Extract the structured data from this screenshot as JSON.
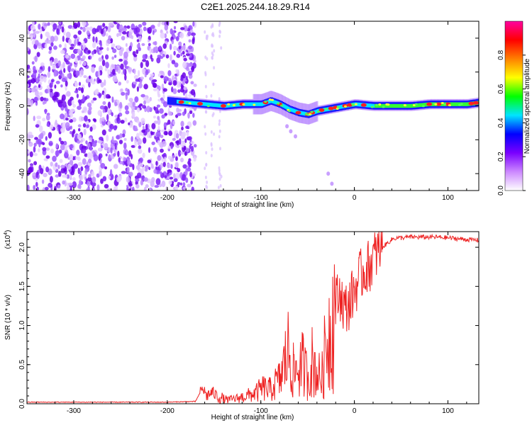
{
  "figure": {
    "title": "C2E1.2025.244.18.29.R14"
  },
  "chart_data": [
    {
      "type": "heatmap",
      "title": "",
      "xlabel": "Height of straight line (km)",
      "ylabel": "Frequency (Hz)",
      "xlim": [
        -350,
        133
      ],
      "ylim": [
        -50,
        50
      ],
      "x_ticks": [
        "-300",
        "-200",
        "-100",
        "0",
        "100"
      ],
      "x_tick_values": [
        -300,
        -200,
        -100,
        0,
        100
      ],
      "y_ticks": [
        "-40",
        "-20",
        "0",
        "20",
        "40"
      ],
      "y_tick_values": [
        -40,
        -20,
        0,
        20,
        40
      ],
      "noise_region_x": [
        -350,
        -180
      ],
      "signal_track": {
        "x": [
          -200,
          -180,
          -160,
          -140,
          -120,
          -100,
          -90,
          -80,
          -70,
          -60,
          -50,
          -40,
          -30,
          -20,
          -10,
          0,
          20,
          40,
          60,
          80,
          100,
          120,
          133
        ],
        "freq": [
          3,
          2,
          1,
          0,
          1,
          1,
          3,
          1,
          -2,
          -4,
          -5,
          -3,
          -2,
          -1,
          0,
          1,
          0,
          0,
          0,
          1,
          1,
          1,
          2
        ]
      },
      "colorbar": {
        "label": "Normalized spectral amplitude",
        "range": [
          0,
          1
        ],
        "ticks": [
          "0.0",
          "0.2",
          "0.4",
          "0.6",
          "0.8"
        ],
        "tick_values": [
          0.0,
          0.2,
          0.4,
          0.6,
          0.8
        ],
        "colors": [
          "#ffffff",
          "#cc88ff",
          "#7a00ff",
          "#0000ff",
          "#00e5ff",
          "#00ff00",
          "#ffff00",
          "#ff8000",
          "#ff0000",
          "#ff00a0"
        ]
      }
    },
    {
      "type": "line",
      "title": "",
      "xlabel": "Height of straight line (km)",
      "ylabel": "SNR (10 * v/v)",
      "y_scale_label": "(x10",
      "y_scale_exponent": "4",
      "y_scale_suffix": ")",
      "xlim": [
        -350,
        133
      ],
      "ylim": [
        0,
        2.2
      ],
      "x_ticks": [
        "-300",
        "-200",
        "-100",
        "0",
        "100"
      ],
      "x_tick_values": [
        -300,
        -200,
        -100,
        0,
        100
      ],
      "y_ticks": [
        "0.0",
        "0.5",
        "1.0",
        "1.5",
        "2.0"
      ],
      "y_tick_values": [
        0.0,
        0.5,
        1.0,
        1.5,
        2.0
      ],
      "line_color": "#ee2222",
      "series": [
        {
          "name": "SNR",
          "x": [
            -350,
            -300,
            -250,
            -200,
            -170,
            -162,
            -158,
            -152,
            -145,
            -135,
            -125,
            -115,
            -105,
            -98,
            -90,
            -85,
            -80,
            -75,
            -70,
            -65,
            -60,
            -55,
            -50,
            -45,
            -40,
            -35,
            -30,
            -25,
            -20,
            -15,
            -10,
            -5,
            0,
            5,
            10,
            15,
            20,
            25,
            30,
            35,
            40,
            45,
            50,
            60,
            70,
            80,
            90,
            100,
            110,
            120,
            133
          ],
          "y": [
            0.02,
            0.02,
            0.02,
            0.02,
            0.03,
            0.2,
            0.1,
            0.15,
            0.08,
            0.05,
            0.07,
            0.1,
            0.14,
            0.2,
            0.18,
            0.25,
            0.3,
            0.5,
            0.7,
            0.4,
            0.45,
            0.5,
            0.35,
            0.55,
            0.4,
            0.3,
            0.8,
            1.0,
            1.3,
            1.4,
            1.2,
            1.3,
            1.45,
            1.6,
            1.7,
            1.75,
            1.85,
            1.95,
            2.0,
            2.05,
            2.1,
            2.12,
            2.12,
            2.13,
            2.13,
            2.13,
            2.13,
            2.12,
            2.11,
            2.1,
            2.09
          ]
        }
      ]
    }
  ]
}
